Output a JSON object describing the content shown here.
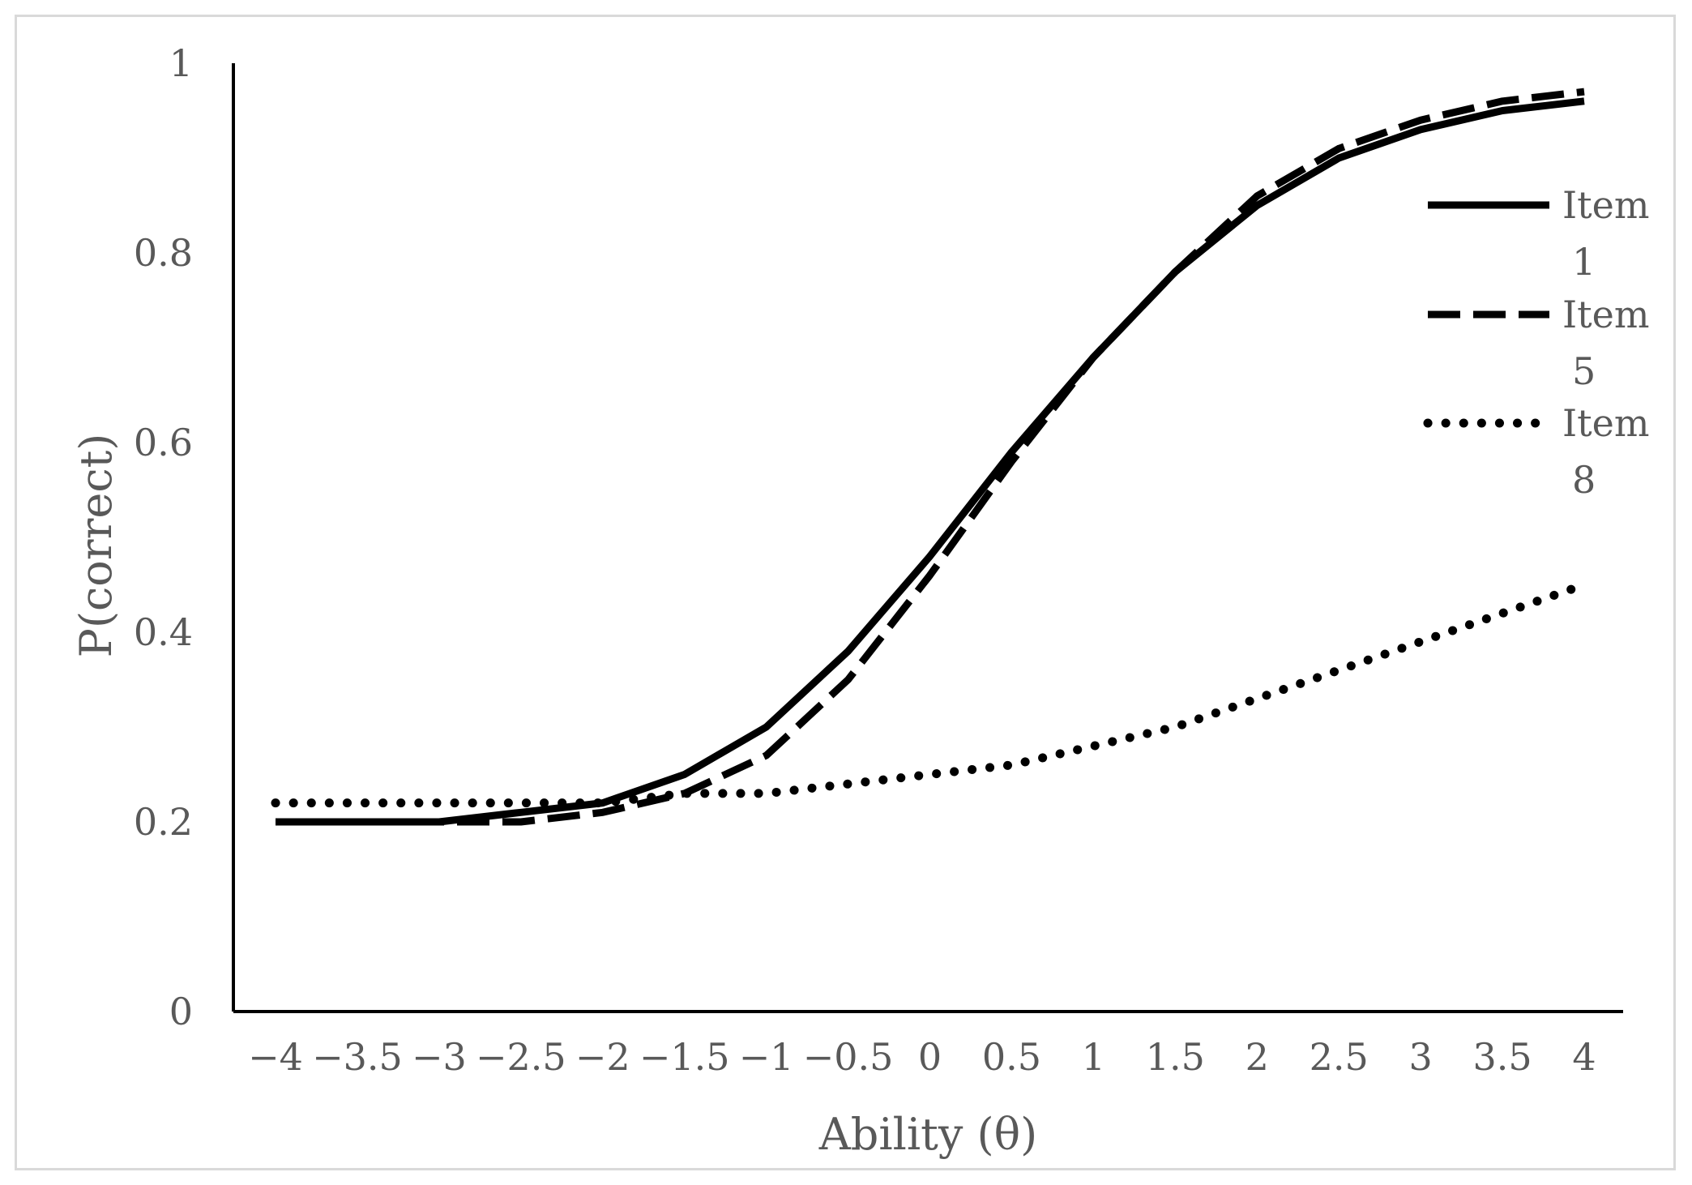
{
  "chart_data": {
    "type": "line",
    "title": "",
    "xlabel": "Ability (θ)",
    "ylabel": "P(correct)",
    "xlim": [
      -4,
      4
    ],
    "ylim": [
      0,
      1
    ],
    "x_ticks": [
      "−4",
      "−3.5",
      "−3",
      "−2.5",
      "−2",
      "−1.5",
      "−1",
      "−0.5",
      "0",
      "0.5",
      "1",
      "1.5",
      "2",
      "2.5",
      "3",
      "3.5",
      "4"
    ],
    "y_ticks": [
      "0",
      "0.2",
      "0.4",
      "0.6",
      "0.8",
      "1"
    ],
    "x": [
      -4,
      -3.5,
      -3,
      -2.5,
      -2,
      -1.5,
      -1,
      -0.5,
      0,
      0.5,
      1,
      1.5,
      2,
      2.5,
      3,
      3.5,
      4
    ],
    "grid": false,
    "legend_position": "right",
    "series": [
      {
        "name": "Item 1",
        "legend_lines": [
          "Item",
          "1"
        ],
        "style": "solid",
        "color": "#000000",
        "values": [
          0.2,
          0.2,
          0.2,
          0.21,
          0.22,
          0.25,
          0.3,
          0.38,
          0.48,
          0.59,
          0.69,
          0.78,
          0.85,
          0.9,
          0.93,
          0.95,
          0.96
        ]
      },
      {
        "name": "Item 5",
        "legend_lines": [
          "Item",
          "5"
        ],
        "style": "dashed",
        "color": "#000000",
        "values": [
          0.2,
          0.2,
          0.2,
          0.2,
          0.21,
          0.23,
          0.27,
          0.35,
          0.46,
          0.58,
          0.69,
          0.78,
          0.86,
          0.91,
          0.94,
          0.96,
          0.97
        ]
      },
      {
        "name": "Item 8",
        "legend_lines": [
          "Item",
          "8"
        ],
        "style": "dotted",
        "color": "#000000",
        "values": [
          0.22,
          0.22,
          0.22,
          0.22,
          0.22,
          0.23,
          0.23,
          0.24,
          0.25,
          0.26,
          0.28,
          0.3,
          0.33,
          0.36,
          0.39,
          0.42,
          0.45
        ]
      }
    ]
  }
}
